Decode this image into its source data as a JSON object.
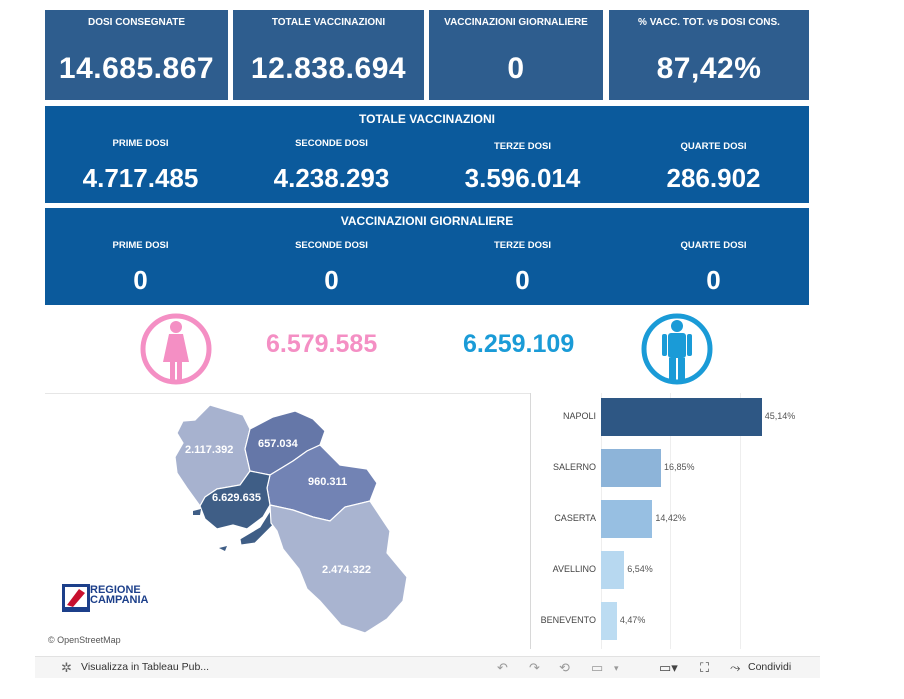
{
  "kpis": [
    {
      "label": "DOSI  CONSEGNATE",
      "value": "14.685.867"
    },
    {
      "label": "TOTALE VACCINAZIONI",
      "value": "12.838.694"
    },
    {
      "label": "VACCINAZIONI GIORNALIERE",
      "value": "0"
    },
    {
      "label": "% VACC. TOT. vs DOSI CONS.",
      "value": "87,42%"
    }
  ],
  "totale": {
    "title": "TOTALE VACCINAZIONI",
    "cols": [
      {
        "label": "PRIME DOSI",
        "value": "4.717.485"
      },
      {
        "label": "SECONDE DOSI",
        "value": "4.238.293"
      },
      {
        "label": "TERZE DOSI",
        "value": "3.596.014"
      },
      {
        "label": "QUARTE DOSI",
        "value": "286.902"
      }
    ]
  },
  "giornaliere": {
    "title": "VACCINAZIONI GIORNALIERE",
    "cols": [
      {
        "label": "PRIME DOSI",
        "value": "0"
      },
      {
        "label": "SECONDE DOSI",
        "value": "0"
      },
      {
        "label": "TERZE DOSI",
        "value": "0"
      },
      {
        "label": "QUARTE DOSI",
        "value": "0"
      }
    ]
  },
  "gender": {
    "female_value": "6.579.585",
    "male_value": "6.259.109",
    "female_color": "#f48fc4",
    "male_color": "#1a9bd7"
  },
  "map": {
    "regions": [
      {
        "name": "Caserta",
        "value": "2.117.392",
        "color": "#a7b2cf"
      },
      {
        "name": "Benevento",
        "value": "657.034",
        "color": "#6577a8"
      },
      {
        "name": "Avellino",
        "value": "960.311",
        "color": "#7283b4"
      },
      {
        "name": "Napoli",
        "value": "6.629.635",
        "color": "#3f5e86"
      },
      {
        "name": "Salerno",
        "value": "2.474.322",
        "color": "#a9b4d0"
      }
    ],
    "logo_line1": "REGIONE",
    "logo_line2": "CAMPANIA",
    "attribution": "© OpenStreetMap"
  },
  "chart_data": {
    "type": "bar",
    "orientation": "horizontal",
    "categories": [
      "NAPOLI",
      "SALERNO",
      "CASERTA",
      "AVELLINO",
      "BENEVENTO"
    ],
    "values": [
      45.14,
      16.85,
      14.42,
      6.54,
      4.47
    ],
    "labels": [
      "45,14%",
      "16,85%",
      "14,42%",
      "6,54%",
      "4,47%"
    ],
    "colors": [
      "#2e5784",
      "#8db4d9",
      "#97bfe2",
      "#b7d8f0",
      "#bcdcf2"
    ],
    "xlim": [
      0,
      50
    ]
  },
  "toolbar": {
    "view_label": "Visualizza in Tableau Pub...",
    "share_label": "Condividi"
  }
}
